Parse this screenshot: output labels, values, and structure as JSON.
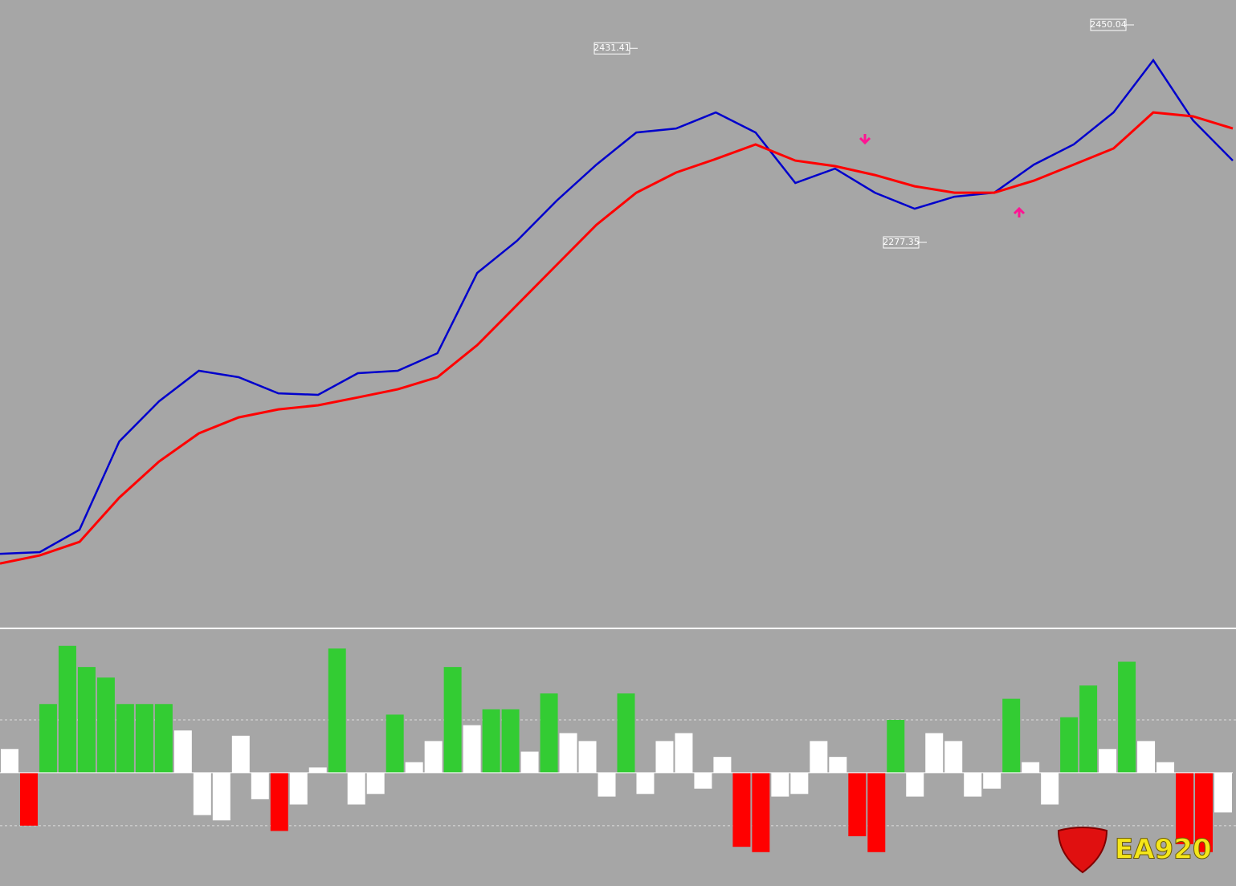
{
  "chart_data": [
    {
      "type": "line",
      "ylim": [
        1972.8,
        2469.8
      ],
      "series": [
        {
          "color": "#0000cc",
          "values": [
            2030.1,
            2031.4,
            2049.2,
            2119.3,
            2151.2,
            2175.4,
            2170.3,
            2157.5,
            2156.3,
            2173.5,
            2175.4,
            2189.4,
            2253.1,
            2278.6,
            2310.5,
            2339.1,
            2364.6,
            2367.8,
            2380.5,
            2364.6,
            2324.5,
            2335.9,
            2316.8,
            2304.1,
            2313.6,
            2316.8,
            2339.1,
            2355.1,
            2380.5,
            2422.0,
            2374.2,
            2342.3
          ]
        },
        {
          "color": "#ff0000",
          "values": [
            2022.4,
            2028.8,
            2039.6,
            2074.7,
            2103.4,
            2125.7,
            2138.4,
            2144.8,
            2148.0,
            2154.3,
            2160.7,
            2170.3,
            2195.8,
            2227.6,
            2259.5,
            2291.3,
            2316.8,
            2332.8,
            2343.6,
            2355.1,
            2342.3,
            2337.9,
            2330.8,
            2321.9,
            2316.8,
            2316.8,
            2326.4,
            2339.1,
            2351.9,
            2380.5,
            2377.4,
            2367.8
          ]
        }
      ],
      "annotations": [
        2431.41,
        2450.04,
        2277.35
      ]
    },
    {
      "type": "bar",
      "ylim": [
        -2.08,
        2.7
      ],
      "levels": [
        -1,
        1
      ],
      "values": [
        0.45,
        -1.0,
        1.3,
        2.4,
        2.0,
        1.8,
        1.3,
        1.3,
        1.3,
        0.8,
        -0.8,
        -0.9,
        0.7,
        -0.5,
        -1.1,
        -0.6,
        0.1,
        2.35,
        -0.6,
        -0.4,
        1.1,
        0.2,
        0.6,
        2.0,
        0.9,
        1.2,
        1.2,
        0.4,
        1.5,
        0.75,
        0.6,
        -0.45,
        1.5,
        -0.4,
        0.6,
        0.75,
        -0.3,
        0.3,
        -1.4,
        -1.5,
        -0.45,
        -0.4,
        0.6,
        0.3,
        -1.2,
        -1.5,
        1.0,
        -0.45,
        0.75,
        0.6,
        -0.45,
        -0.3,
        1.4,
        0.2,
        -0.6,
        1.05,
        1.65,
        0.45,
        2.1,
        0.6,
        0.2,
        -1.35,
        -1.5,
        -0.75
      ],
      "bar_colors": [
        "#ffffff",
        "#ff0000",
        "#33cc33",
        "#33cc33",
        "#33cc33",
        "#33cc33",
        "#33cc33",
        "#33cc33",
        "#33cc33",
        "#ffffff",
        "#ffffff",
        "#ffffff",
        "#ffffff",
        "#ffffff",
        "#ff0000",
        "#ffffff",
        "#ffffff",
        "#33cc33",
        "#ffffff",
        "#ffffff",
        "#33cc33",
        "#ffffff",
        "#ffffff",
        "#33cc33",
        "#ffffff",
        "#33cc33",
        "#33cc33",
        "#ffffff",
        "#33cc33",
        "#ffffff",
        "#ffffff",
        "#ffffff",
        "#33cc33",
        "#ffffff",
        "#ffffff",
        "#ffffff",
        "#ffffff",
        "#ffffff",
        "#ff0000",
        "#ff0000",
        "#ffffff",
        "#ffffff",
        "#ffffff",
        "#ffffff",
        "#ff0000",
        "#ff0000",
        "#33cc33",
        "#ffffff",
        "#ffffff",
        "#ffffff",
        "#ffffff",
        "#ffffff",
        "#33cc33",
        "#ffffff",
        "#ffffff",
        "#33cc33",
        "#33cc33",
        "#ffffff",
        "#33cc33",
        "#ffffff",
        "#ffffff",
        "#ff0000",
        "#ff0000",
        "#ffffff"
      ]
    }
  ],
  "logo": "EA920"
}
